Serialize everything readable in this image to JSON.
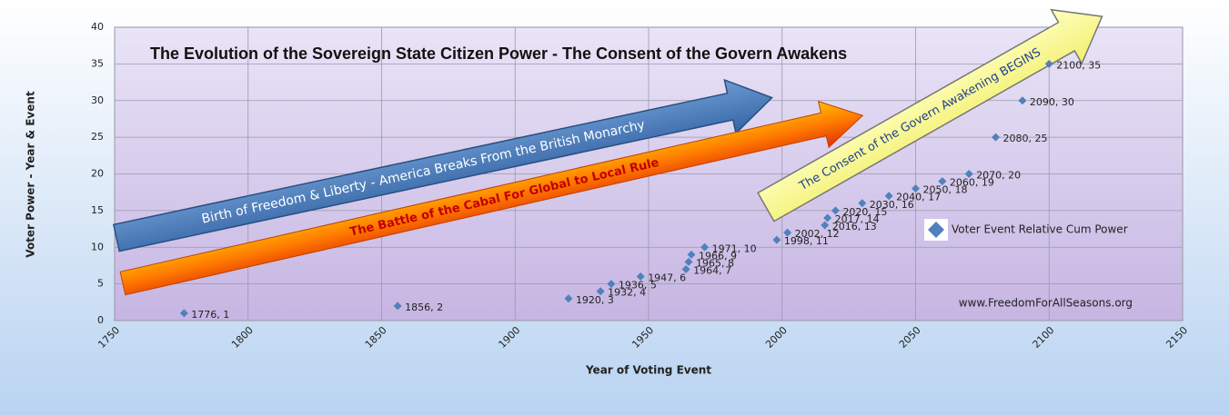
{
  "chart_data": {
    "type": "scatter",
    "title": "The Evolution of the Sovereign State Citizen Power - The Consent of the Govern Awakens",
    "xlabel": "Year of Voting Event",
    "ylabel": "Voter Power - Year & Event",
    "x": [
      1776,
      1856,
      1920,
      1932,
      1936,
      1947,
      1964,
      1965,
      1966,
      1971,
      1998,
      2002,
      2016,
      2017,
      2020,
      2030,
      2040,
      2050,
      2060,
      2070,
      2080,
      2090,
      2100
    ],
    "series": [
      {
        "name": "Voter Event Relative Cum Power",
        "color": "#4f81bd",
        "values": [
          1,
          2,
          3,
          4,
          5,
          6,
          7,
          8,
          9,
          10,
          11,
          12,
          13,
          14,
          15,
          16,
          17,
          18,
          19,
          20,
          25,
          30,
          35
        ],
        "value_labels": [
          "1776, 1",
          "1856, 2",
          "1920, 3",
          "1932, 4",
          "1936, 5",
          "1947, 6",
          "1964, 7",
          "1965, 8",
          "1966, 9",
          "1971, 10",
          "1998, 11",
          "2002, 12",
          "2016, 13",
          "2017, 14",
          "2020, 15",
          "2030, 16",
          "2040, 17",
          "2050, 18",
          "2060, 19",
          "2070, 20",
          "2080, 25",
          "2090, 30",
          "2100, 35"
        ]
      }
    ],
    "xlim": [
      1750,
      2150
    ],
    "xticks": [
      1750,
      1800,
      1850,
      1900,
      1950,
      2000,
      2050,
      2100,
      2150
    ],
    "ylim": [
      0,
      40
    ],
    "yticks": [
      0,
      5,
      10,
      15,
      20,
      25,
      30,
      35,
      40
    ],
    "grid": true,
    "legend": "right",
    "annotations": [
      "Birth of Freedom & Liberty - America Breaks From the British Monarchy",
      "The Battle of the Cabal  For Global to Local Rule",
      "The Consent of the Govern  Awakening BEGINS",
      "www.FreedomForAllSeasons.org"
    ]
  }
}
